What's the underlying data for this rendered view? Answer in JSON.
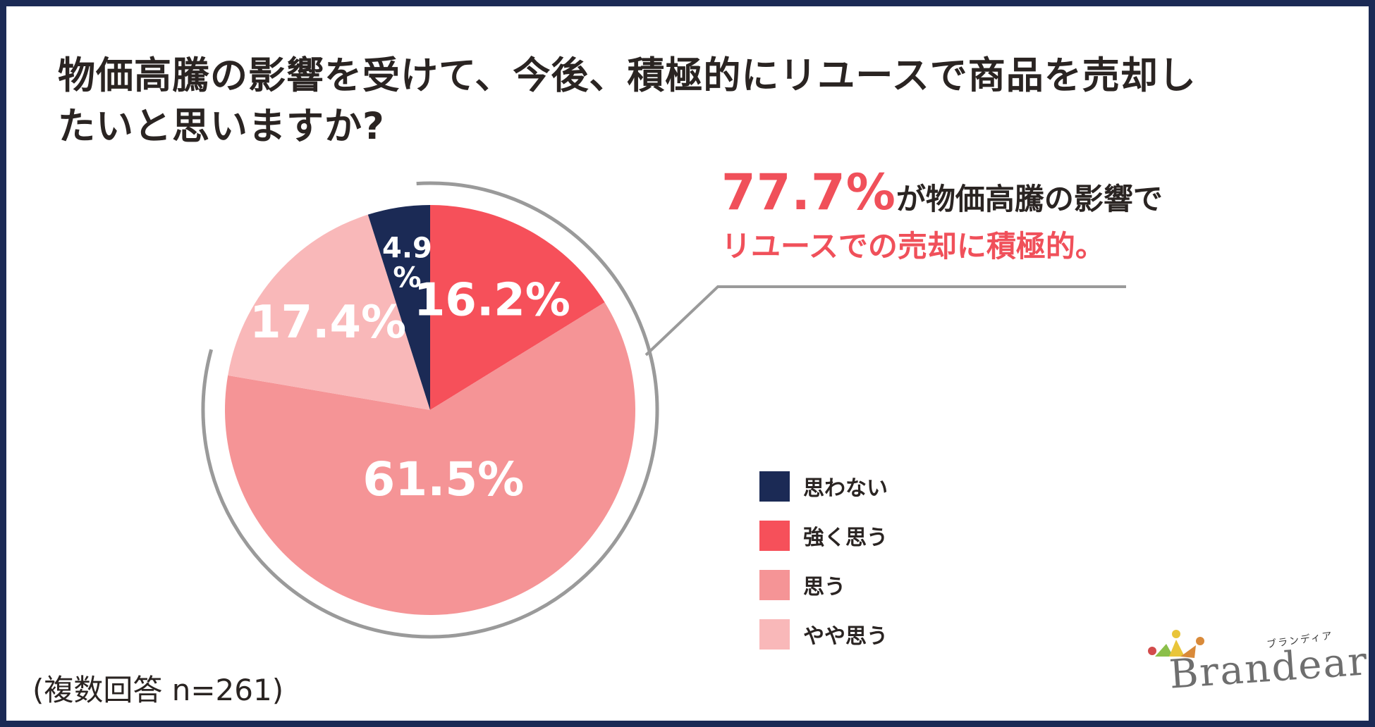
{
  "title": {
    "line1": "物価高騰の影響を受けて、今後、積極的にリユースで商品を売却し",
    "line2": "たいと思いますか?"
  },
  "callout": {
    "percent": "77.7%",
    "line1_rest": "が物価高騰の影響で",
    "line2": "リユースでの売却に積極的。"
  },
  "legend": [
    {
      "label": "思わない",
      "color": "#1b2a55"
    },
    {
      "label": "強く思う",
      "color": "#f6505a"
    },
    {
      "label": "思う",
      "color": "#f59496"
    },
    {
      "label": "やや思う",
      "color": "#f9b8b9"
    }
  ],
  "note": "(複数回答 n=261)",
  "logo": {
    "text": "Brandear",
    "kana": "ブランディア"
  },
  "chart_data": {
    "type": "pie",
    "title": "物価高騰の影響を受けて、今後、積極的にリユースで商品を売却したいと思いますか?",
    "categories": [
      "強く思う",
      "思う",
      "やや思う",
      "思わない"
    ],
    "values": [
      16.2,
      61.5,
      17.4,
      4.9
    ],
    "labels": [
      "16.2%",
      "61.5%",
      "17.4%",
      "4.9\n%"
    ],
    "colors": [
      "#f6505a",
      "#f59496",
      "#f9b8b9",
      "#1b2a55"
    ],
    "start": "12 o'clock, clockwise",
    "legend_position": "right",
    "highlight": {
      "categories": [
        "強く思う",
        "思う"
      ],
      "total": 77.7
    }
  }
}
